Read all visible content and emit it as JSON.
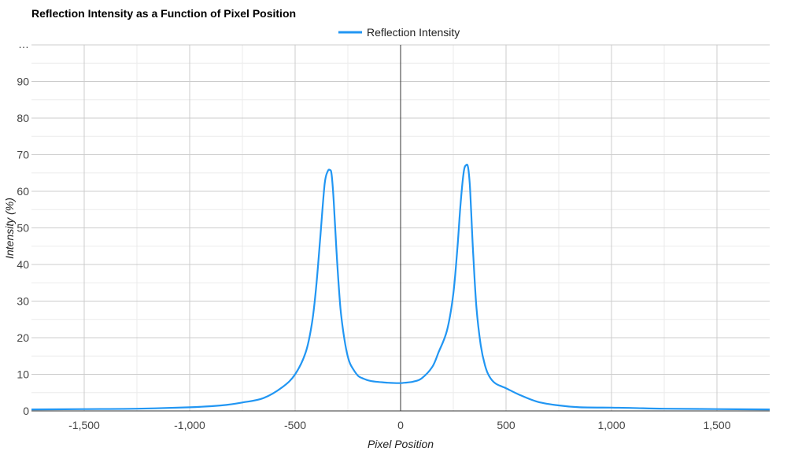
{
  "chart_data": {
    "type": "line",
    "title": "Reflection Intensity as a Function of Pixel Position",
    "xlabel": "Pixel Position",
    "ylabel": "Intensity (%)",
    "xlim": [
      -1750,
      1750
    ],
    "ylim": [
      0,
      100
    ],
    "y_top_tick_label": "…",
    "x_ticks": [
      -1500,
      -1000,
      -500,
      0,
      500,
      1000,
      1500
    ],
    "x_tick_labels": [
      "-1,500",
      "-1,000",
      "-500",
      "0",
      "500",
      "1,000",
      "1,500"
    ],
    "y_ticks": [
      0,
      10,
      20,
      30,
      40,
      50,
      60,
      70,
      80,
      90
    ],
    "y_tick_labels": [
      "0",
      "10",
      "20",
      "30",
      "40",
      "50",
      "60",
      "70",
      "80",
      "90"
    ],
    "grid": true,
    "legend": "top-center",
    "series": [
      {
        "name": "Reflection Intensity",
        "color": "#2196f3",
        "x": [
          -1750,
          -1500,
          -1250,
          -1000,
          -850,
          -750,
          -650,
          -560,
          -500,
          -450,
          -420,
          -400,
          -380,
          -360,
          -345,
          -335,
          -328,
          -320,
          -312,
          -300,
          -285,
          -270,
          -255,
          -240,
          -220,
          -200,
          -175,
          -150,
          -120,
          -100,
          -60,
          -20,
          0,
          20,
          60,
          100,
          150,
          180,
          220,
          250,
          270,
          285,
          300,
          312,
          320,
          328,
          335,
          345,
          360,
          380,
          400,
          420,
          450,
          500,
          560,
          650,
          750,
          850,
          1000,
          1100,
          1250,
          1500,
          1750
        ],
        "y": [
          0.4,
          0.5,
          0.6,
          1.0,
          1.5,
          2.3,
          3.5,
          6.5,
          10,
          16,
          24,
          34,
          48,
          62,
          65.5,
          65.8,
          65,
          60,
          52,
          40,
          28,
          21,
          16,
          13,
          11,
          9.5,
          8.8,
          8.3,
          8.0,
          7.9,
          7.7,
          7.6,
          7.6,
          7.7,
          8.0,
          8.9,
          12,
          16,
          22,
          32,
          45,
          57,
          65.5,
          67.2,
          66.5,
          62,
          54,
          42,
          28,
          18,
          12.5,
          9.5,
          7.5,
          6.2,
          4.5,
          2.5,
          1.5,
          1.0,
          0.9,
          0.8,
          0.6,
          0.5,
          0.4
        ]
      }
    ]
  }
}
